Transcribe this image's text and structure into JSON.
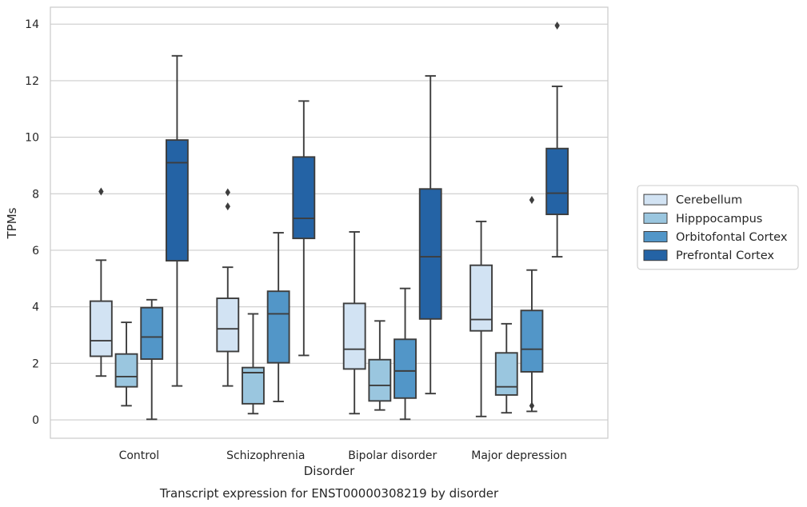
{
  "chart_data": {
    "type": "box",
    "caption": "Transcript expression for ENST00000308219 by disorder",
    "xlabel": "Disorder",
    "ylabel": "TPMs",
    "ylim": [
      -0.65,
      14.6
    ],
    "yticks": [
      0,
      2,
      4,
      6,
      8,
      10,
      12,
      14
    ],
    "grid": "horizontal",
    "legend_position": "right",
    "categories": [
      "Control",
      "Schizophrenia",
      "Bipolar disorder",
      "Major depression"
    ],
    "series": [
      {
        "name": "Cerebellum",
        "color": "#d2e3f3",
        "boxes": [
          {
            "whislo": 1.55,
            "q1": 2.25,
            "med": 2.8,
            "q3": 4.2,
            "whishi": 5.65,
            "fliers": [
              8.08
            ]
          },
          {
            "whislo": 1.2,
            "q1": 2.42,
            "med": 3.22,
            "q3": 4.3,
            "whishi": 5.4,
            "fliers": [
              8.05,
              7.55
            ]
          },
          {
            "whislo": 0.22,
            "q1": 1.8,
            "med": 2.5,
            "q3": 4.12,
            "whishi": 6.65,
            "fliers": []
          },
          {
            "whislo": 0.12,
            "q1": 3.15,
            "med": 3.55,
            "q3": 5.47,
            "whishi": 7.02,
            "fliers": []
          }
        ]
      },
      {
        "name": "Hipppocampus",
        "color": "#9ac6df",
        "boxes": [
          {
            "whislo": 0.5,
            "q1": 1.17,
            "med": 1.53,
            "q3": 2.33,
            "whishi": 3.45,
            "fliers": []
          },
          {
            "whislo": 0.22,
            "q1": 0.57,
            "med": 1.67,
            "q3": 1.85,
            "whishi": 3.75,
            "fliers": []
          },
          {
            "whislo": 0.35,
            "q1": 0.67,
            "med": 1.22,
            "q3": 2.13,
            "whishi": 3.5,
            "fliers": []
          },
          {
            "whislo": 0.25,
            "q1": 0.88,
            "med": 1.17,
            "q3": 2.37,
            "whishi": 3.4,
            "fliers": []
          }
        ]
      },
      {
        "name": "Orbitofontal Cortex",
        "color": "#5296c8",
        "boxes": [
          {
            "whislo": 0.02,
            "q1": 2.15,
            "med": 2.93,
            "q3": 3.97,
            "whishi": 4.25,
            "fliers": []
          },
          {
            "whislo": 0.65,
            "q1": 2.02,
            "med": 3.75,
            "q3": 4.55,
            "whishi": 6.62,
            "fliers": []
          },
          {
            "whislo": 0.02,
            "q1": 0.77,
            "med": 1.73,
            "q3": 2.85,
            "whishi": 4.65,
            "fliers": []
          },
          {
            "whislo": 0.3,
            "q1": 1.7,
            "med": 2.5,
            "q3": 3.87,
            "whishi": 5.3,
            "fliers": [
              7.78,
              0.5
            ]
          }
        ]
      },
      {
        "name": "Prefrontal Cortex",
        "color": "#2463a5",
        "boxes": [
          {
            "whislo": 1.2,
            "q1": 5.63,
            "med": 9.1,
            "q3": 9.9,
            "whishi": 12.88,
            "fliers": []
          },
          {
            "whislo": 2.28,
            "q1": 6.42,
            "med": 7.13,
            "q3": 9.3,
            "whishi": 11.28,
            "fliers": []
          },
          {
            "whislo": 0.93,
            "q1": 3.57,
            "med": 5.77,
            "q3": 8.17,
            "whishi": 12.17,
            "fliers": []
          },
          {
            "whislo": 5.77,
            "q1": 7.27,
            "med": 8.02,
            "q3": 9.6,
            "whishi": 11.8,
            "fliers": [
              13.95
            ]
          }
        ]
      }
    ]
  }
}
